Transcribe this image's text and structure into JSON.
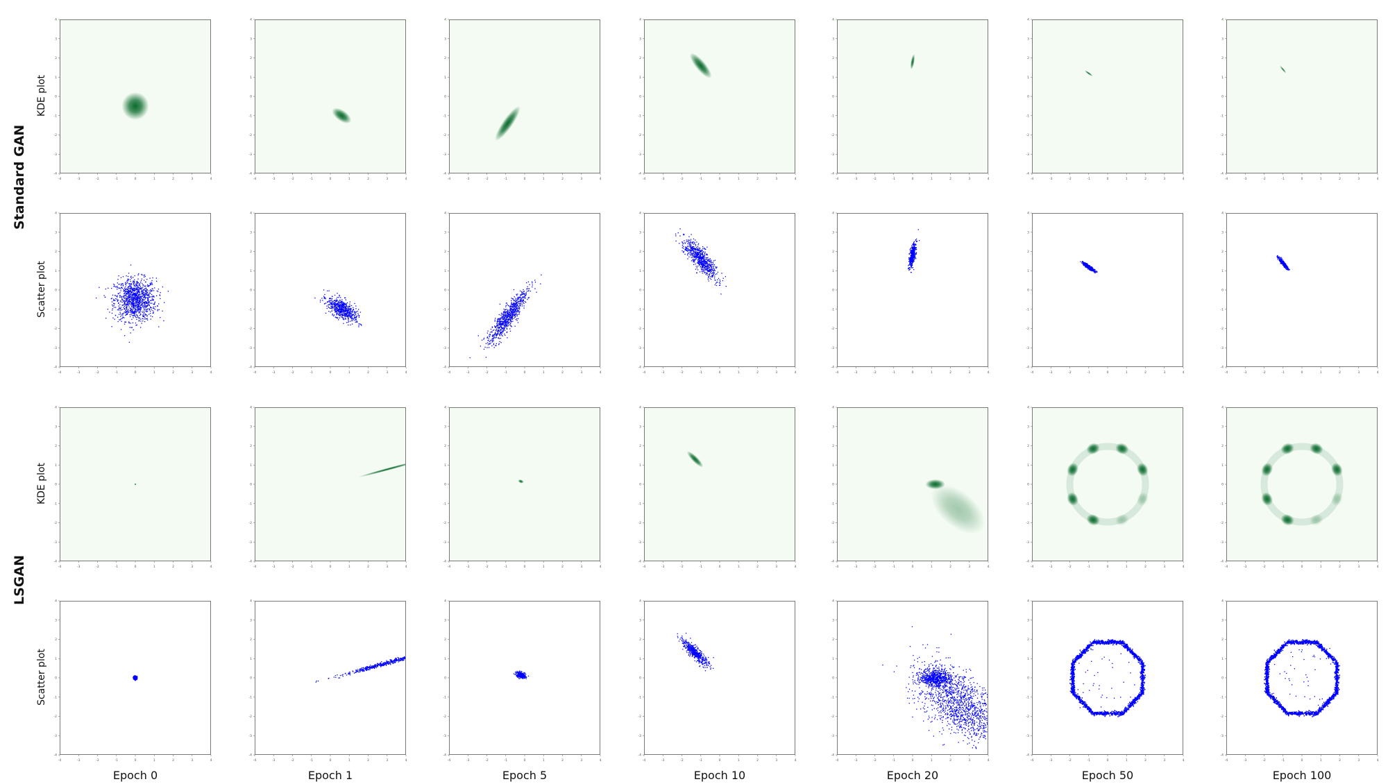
{
  "figure": {
    "group_labels": [
      "Standard GAN",
      "LSGAN"
    ],
    "row_labels": [
      "KDE plot",
      "Scatter plot",
      "KDE plot",
      "Scatter plot"
    ],
    "column_labels": [
      "Epoch 0",
      "Epoch 1",
      "Epoch 5",
      "Epoch 10",
      "Epoch 20",
      "Epoch 50",
      "Epoch 100"
    ],
    "colors": {
      "kde_background": "#f4fbf2",
      "kde_density": "#0b6b2e",
      "scatter_points": "#0000ff",
      "axis": "#777777"
    }
  },
  "chart_data": {
    "type": "scatter",
    "panel_types": [
      "kde",
      "scatter"
    ],
    "xlim": [
      -4,
      4
    ],
    "ylim": [
      -4,
      4
    ],
    "ticks": [
      -4,
      -3,
      -2,
      -1,
      0,
      1,
      2,
      3,
      4
    ],
    "grid": false,
    "standard_gan": [
      {
        "epoch": "Epoch 0",
        "blobs": [
          {
            "cx": 0.0,
            "cy": -0.5,
            "sx": 0.55,
            "sy": 0.55,
            "angle": 0
          }
        ]
      },
      {
        "epoch": "Epoch 1",
        "blobs": [
          {
            "cx": 0.6,
            "cy": -1.0,
            "sx": 0.45,
            "sy": 0.22,
            "angle": -35
          }
        ]
      },
      {
        "epoch": "Epoch 5",
        "blobs": [
          {
            "cx": -0.9,
            "cy": -1.4,
            "sx": 0.85,
            "sy": 0.2,
            "angle": 55
          }
        ]
      },
      {
        "epoch": "Epoch 10",
        "blobs": [
          {
            "cx": -1.0,
            "cy": 1.6,
            "sx": 0.65,
            "sy": 0.2,
            "angle": -50
          }
        ]
      },
      {
        "epoch": "Epoch 20",
        "blobs": [
          {
            "cx": 0.0,
            "cy": 1.8,
            "sx": 0.32,
            "sy": 0.07,
            "angle": 80
          }
        ]
      },
      {
        "epoch": "Epoch 50",
        "blobs": [
          {
            "cx": -1.0,
            "cy": 1.2,
            "sx": 0.2,
            "sy": 0.04,
            "angle": -35
          }
        ]
      },
      {
        "epoch": "Epoch 100",
        "blobs": [
          {
            "cx": -1.0,
            "cy": 1.4,
            "sx": 0.2,
            "sy": 0.035,
            "angle": -50
          }
        ]
      }
    ],
    "lsgan": [
      {
        "epoch": "Epoch 0",
        "blobs": [
          {
            "cx": 0.0,
            "cy": 0.0,
            "sx": 0.04,
            "sy": 0.04,
            "angle": 0
          }
        ]
      },
      {
        "epoch": "Epoch 1",
        "blobs": [
          {
            "cx": 3.1,
            "cy": 0.8,
            "sx": 1.3,
            "sy": 0.05,
            "angle": 15
          }
        ]
      },
      {
        "epoch": "Epoch 5",
        "blobs": [
          {
            "cx": -0.2,
            "cy": 0.15,
            "sx": 0.12,
            "sy": 0.07,
            "angle": -20
          }
        ]
      },
      {
        "epoch": "Epoch 10",
        "blobs": [
          {
            "cx": -1.3,
            "cy": 1.3,
            "sx": 0.45,
            "sy": 0.12,
            "angle": -45
          }
        ]
      },
      {
        "epoch": "Epoch 20",
        "blobs": [
          {
            "cx": 1.2,
            "cy": 0.0,
            "sx": 0.4,
            "sy": 0.2,
            "angle": 0
          },
          {
            "cx": 2.4,
            "cy": -1.3,
            "sx": 1.3,
            "sy": 0.7,
            "angle": -40
          }
        ]
      },
      {
        "epoch": "Epoch 50",
        "ring": {
          "cx": 0.0,
          "cy": 0.0,
          "r": 2.0,
          "modes": 8,
          "strong_modes": 6
        }
      },
      {
        "epoch": "Epoch 100",
        "ring": {
          "cx": 0.0,
          "cy": 0.0,
          "r": 2.0,
          "modes": 8,
          "strong_modes": 6
        }
      }
    ]
  }
}
